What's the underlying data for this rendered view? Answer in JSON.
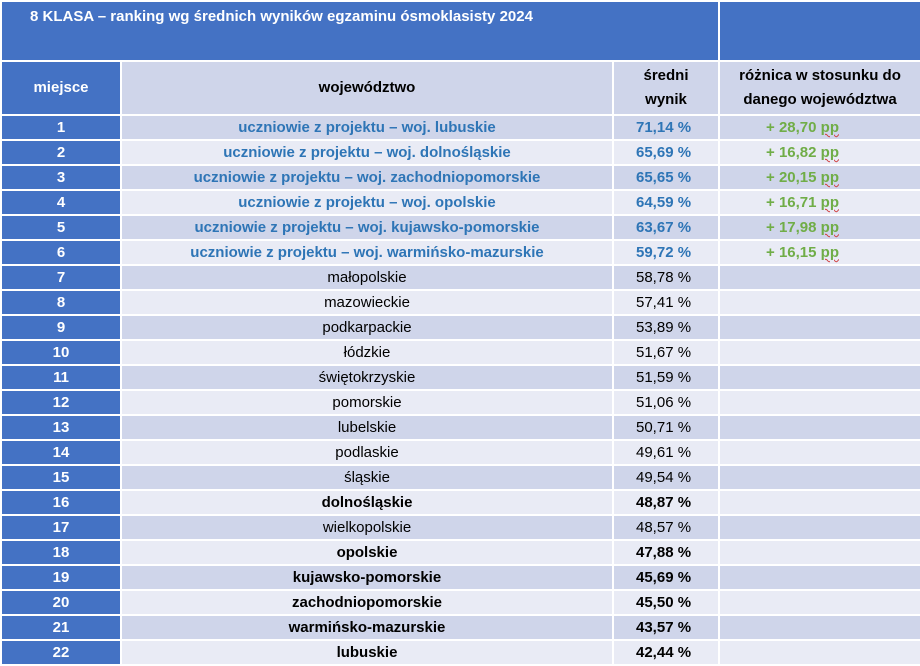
{
  "title": "8 KLASA – ranking wg średnich wyników egzaminu ósmoklasisty 2024",
  "headers": {
    "place": "miejsce",
    "region": "województwo",
    "score_line1": "średni",
    "score_line2": "wynik",
    "diff_line1": "różnica w stosunku do",
    "diff_line2": "danego województwa"
  },
  "rows": [
    {
      "place": "1",
      "region": "uczniowie z projektu – woj. lubuskie",
      "score": "71,14 %",
      "diff": "+ 28,70",
      "unit": "pp",
      "style": "proj"
    },
    {
      "place": "2",
      "region": "uczniowie z projektu – woj. dolnośląskie",
      "score": "65,69 %",
      "diff": "+ 16,82",
      "unit": "pp",
      "style": "proj"
    },
    {
      "place": "3",
      "region": "uczniowie z projektu – woj. zachodniopomorskie",
      "score": "65,65 %",
      "diff": "+ 20,15",
      "unit": "pp",
      "style": "proj"
    },
    {
      "place": "4",
      "region": "uczniowie z projektu – woj. opolskie",
      "score": "64,59 %",
      "diff": "+ 16,71",
      "unit": "pp",
      "style": "proj"
    },
    {
      "place": "5",
      "region": "uczniowie z projektu – woj. kujawsko-pomorskie",
      "score": "63,67 %",
      "diff": "+ 17,98",
      "unit": "pp",
      "style": "proj"
    },
    {
      "place": "6",
      "region": "uczniowie z projektu – woj. warmińsko-mazurskie",
      "score": "59,72 %",
      "diff": "+ 16,15",
      "unit": "pp",
      "style": "proj"
    },
    {
      "place": "7",
      "region": "małopolskie",
      "score": "58,78 %",
      "diff": "",
      "unit": "",
      "style": "normal"
    },
    {
      "place": "8",
      "region": "mazowieckie",
      "score": "57,41 %",
      "diff": "",
      "unit": "",
      "style": "normal"
    },
    {
      "place": "9",
      "region": "podkarpackie",
      "score": "53,89 %",
      "diff": "",
      "unit": "",
      "style": "normal"
    },
    {
      "place": "10",
      "region": "łódzkie",
      "score": "51,67 %",
      "diff": "",
      "unit": "",
      "style": "normal"
    },
    {
      "place": "11",
      "region": "świętokrzyskie",
      "score": "51,59 %",
      "diff": "",
      "unit": "",
      "style": "normal"
    },
    {
      "place": "12",
      "region": "pomorskie",
      "score": "51,06 %",
      "diff": "",
      "unit": "",
      "style": "normal"
    },
    {
      "place": "13",
      "region": "lubelskie",
      "score": "50,71 %",
      "diff": "",
      "unit": "",
      "style": "normal"
    },
    {
      "place": "14",
      "region": "podlaskie",
      "score": "49,61 %",
      "diff": "",
      "unit": "",
      "style": "normal"
    },
    {
      "place": "15",
      "region": "śląskie",
      "score": "49,54 %",
      "diff": "",
      "unit": "",
      "style": "normal"
    },
    {
      "place": "16",
      "region": "dolnośląskie",
      "score": "48,87 %",
      "diff": "",
      "unit": "",
      "style": "bold"
    },
    {
      "place": "17",
      "region": "wielkopolskie",
      "score": "48,57 %",
      "diff": "",
      "unit": "",
      "style": "normal"
    },
    {
      "place": "18",
      "region": "opolskie",
      "score": "47,88 %",
      "diff": "",
      "unit": "",
      "style": "bold"
    },
    {
      "place": "19",
      "region": "kujawsko-pomorskie",
      "score": "45,69 %",
      "diff": "",
      "unit": "",
      "style": "bold"
    },
    {
      "place": "20",
      "region": "zachodniopomorskie",
      "score": "45,50 %",
      "diff": "",
      "unit": "",
      "style": "bold"
    },
    {
      "place": "21",
      "region": "warmińsko-mazurskie",
      "score": "43,57 %",
      "diff": "",
      "unit": "",
      "style": "bold"
    },
    {
      "place": "22",
      "region": "lubuskie",
      "score": "42,44 %",
      "diff": "",
      "unit": "",
      "style": "bold"
    }
  ],
  "colors": {
    "header_blue": "#4472c4",
    "band_dark": "#cfd5ea",
    "band_light": "#e9ebf5",
    "project_text": "#2e75b6",
    "diff_text": "#70ad47"
  }
}
